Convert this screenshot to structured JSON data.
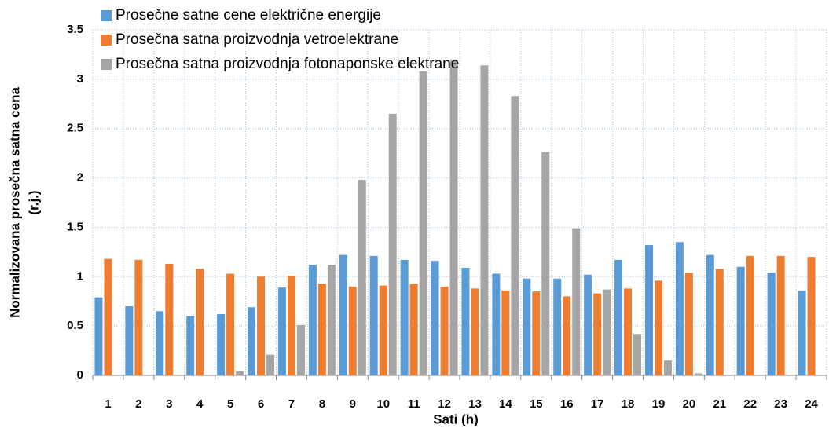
{
  "chart_data": {
    "type": "bar",
    "categories": [
      "1",
      "2",
      "3",
      "4",
      "5",
      "6",
      "7",
      "8",
      "9",
      "10",
      "11",
      "12",
      "13",
      "14",
      "15",
      "16",
      "17",
      "18",
      "19",
      "20",
      "21",
      "22",
      "23",
      "24"
    ],
    "series": [
      {
        "name": "Prosečne satne cene električne energije",
        "color": "#5b9bd5",
        "values": [
          0.79,
          0.7,
          0.65,
          0.6,
          0.62,
          0.69,
          0.89,
          1.12,
          1.22,
          1.21,
          1.17,
          1.16,
          1.09,
          1.03,
          0.98,
          0.98,
          1.02,
          1.17,
          1.32,
          1.35,
          1.22,
          1.1,
          1.04,
          0.86
        ]
      },
      {
        "name": "Prosečna satna proizvodnja vetroelektrane",
        "color": "#ed7d31",
        "values": [
          1.18,
          1.17,
          1.13,
          1.08,
          1.03,
          1.0,
          1.01,
          0.93,
          0.9,
          0.91,
          0.93,
          0.9,
          0.88,
          0.86,
          0.85,
          0.8,
          0.83,
          0.88,
          0.96,
          1.04,
          1.08,
          1.21,
          1.21,
          1.2
        ]
      },
      {
        "name": "Prosečna satna proizvodnja fotonaponske elektrane",
        "color": "#a5a5a5",
        "values": [
          0,
          0,
          0,
          0,
          0.04,
          0.21,
          0.51,
          1.12,
          1.98,
          2.65,
          3.08,
          3.2,
          3.14,
          2.83,
          2.26,
          1.49,
          0.87,
          0.42,
          0.15,
          0.02,
          0,
          0,
          0,
          0
        ]
      }
    ],
    "xlabel": "Sati (h)",
    "ylabel": [
      "Normalizovana prosečna satna cena",
      "(r.j.)"
    ],
    "ylim": [
      0,
      3.5
    ],
    "yticks": [
      0,
      0.5,
      1,
      1.5,
      2,
      2.5,
      3,
      3.5
    ],
    "grid": true,
    "legend": "upper left"
  }
}
